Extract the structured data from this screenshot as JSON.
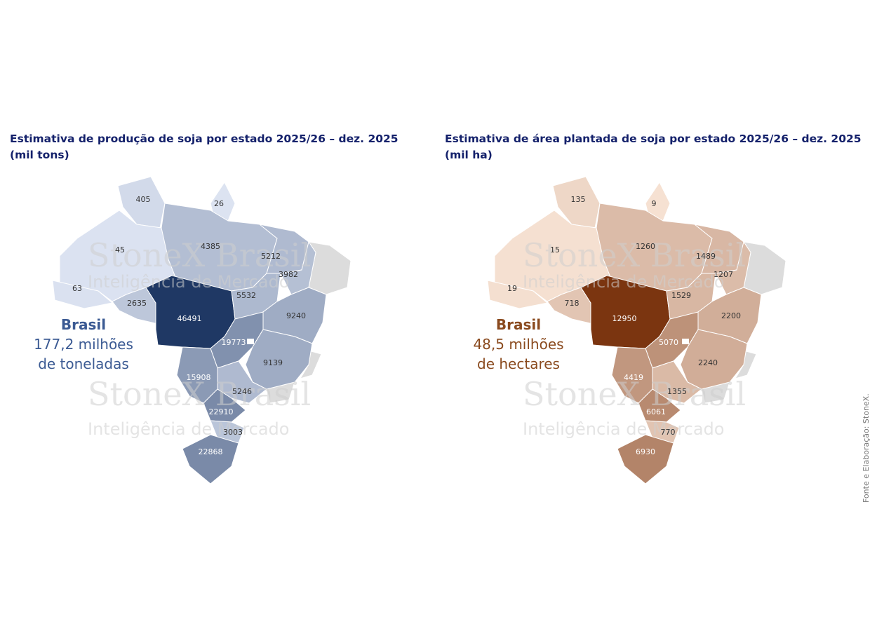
{
  "left_map": {
    "title": "Estimativa de produção de soja por estado 2025/26 – dez. 2025",
    "unit": "(mil tons)",
    "total": {
      "label": "Brasil",
      "lines": [
        "177,2 milhões",
        "de toneladas"
      ],
      "color": "#3b5a93"
    },
    "color_low": "#dfe6f4",
    "color_high": "#1f3864",
    "values": [
      405,
      26,
      45,
      63,
      2635,
      4385,
      46491,
      5212,
      3982,
      5532,
      9240,
      19773,
      9139,
      15908,
      5246,
      22910,
      3003,
      22868
    ]
  },
  "right_map": {
    "title": "Estimativa de área plantada de soja por estado 2025/26 – dez. 2025",
    "unit": "(mil ha)",
    "total": {
      "label": "Brasil",
      "lines": [
        "48,5 milhões",
        "de hectares"
      ],
      "color": "#8a4a1e"
    },
    "color_low": "#f8e4d6",
    "color_high": "#7b3510",
    "values": [
      135,
      9,
      15,
      19,
      718,
      1260,
      12950,
      1489,
      1207,
      1529,
      2200,
      5070,
      2240,
      4419,
      1355,
      6061,
      770,
      6930
    ]
  },
  "watermark": {
    "brand": "StoneX Brasil",
    "tagline": "Inteligência de Mercado"
  },
  "source": "Fonte e Elaboração: StoneX."
}
